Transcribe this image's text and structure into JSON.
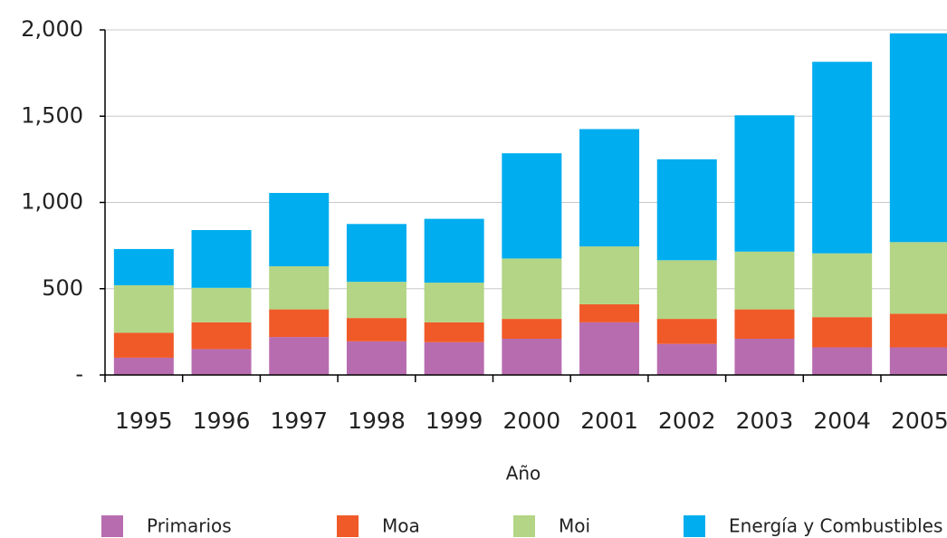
{
  "chart_data": {
    "type": "stacked_bar",
    "x_label": "Año",
    "categories": [
      "1995",
      "1996",
      "1997",
      "1998",
      "1999",
      "2000",
      "2001",
      "2002",
      "2003",
      "2004",
      "2005"
    ],
    "series": [
      {
        "name": "Primarios",
        "color": "#b86cb0",
        "values": [
          100,
          150,
          220,
          195,
          190,
          210,
          305,
          180,
          210,
          160,
          160
        ]
      },
      {
        "name": "Moa",
        "color": "#f05a28",
        "values": [
          145,
          155,
          160,
          135,
          115,
          115,
          105,
          145,
          170,
          175,
          195
        ]
      },
      {
        "name": "Moi",
        "color": "#b3d585",
        "values": [
          275,
          200,
          250,
          210,
          230,
          350,
          335,
          340,
          335,
          370,
          415
        ]
      },
      {
        "name": "Energía y Combustibles",
        "color": "#00adef",
        "values": [
          210,
          335,
          425,
          335,
          370,
          610,
          680,
          585,
          790,
          1110,
          1210
        ]
      }
    ],
    "ylim": [
      0,
      2000
    ],
    "yticks": [
      {
        "value": 0,
        "label": "-"
      },
      500,
      {
        "value": 1000,
        "label": "1,000"
      },
      {
        "value": 1500,
        "label": "1,500"
      },
      {
        "value": 2000,
        "label": "2,000"
      }
    ],
    "grid": true,
    "legend": "bottom"
  }
}
